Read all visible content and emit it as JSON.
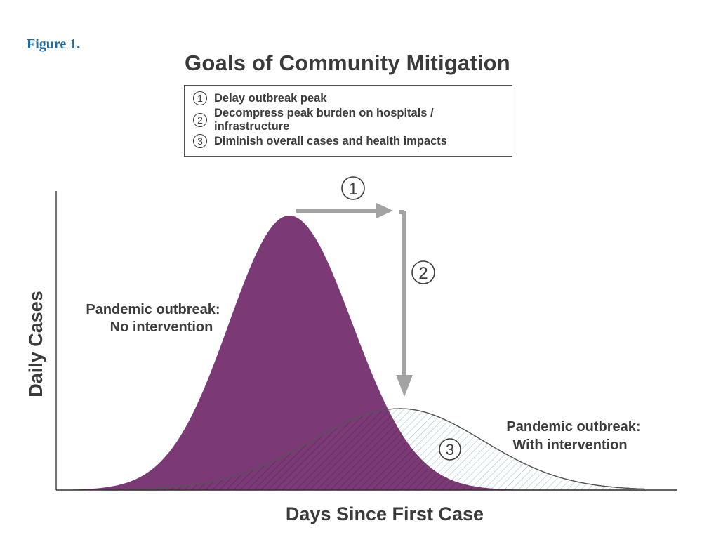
{
  "figure_label": "Figure 1.",
  "title": "Goals of Community Mitigation",
  "legend": {
    "items": [
      {
        "number": "1",
        "text": "Delay outbreak peak"
      },
      {
        "number": "2",
        "text": "Decompress peak burden on hospitals / infrastructure"
      },
      {
        "number": "3",
        "text": "Diminish overall cases and health impacts"
      }
    ]
  },
  "axes": {
    "ylabel": "Daily Cases",
    "xlabel": "Days Since First Case"
  },
  "curves": {
    "no_intervention": {
      "label_line1": "Pandemic outbreak:",
      "label_line2": "No intervention",
      "color": "#7b3a76"
    },
    "with_intervention": {
      "label_line1": "Pandemic outbreak:",
      "label_line2": "With intervention",
      "hatch_color": "#9fc4d8"
    }
  },
  "markers": {
    "m1": "1",
    "m2": "2",
    "m3": "3"
  },
  "arrow_color": "#a3a3a3"
}
